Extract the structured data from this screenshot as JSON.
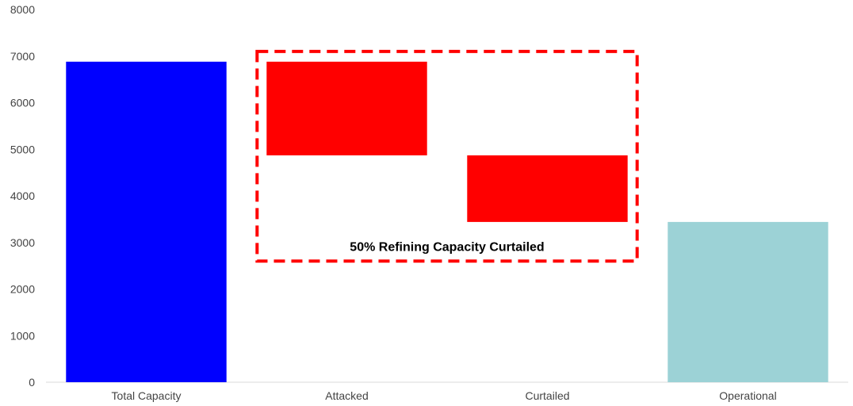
{
  "chart_data": {
    "type": "bar",
    "subtype": "waterfall",
    "categories": [
      "Total Capacity",
      "Attacked",
      "Curtailed",
      "Operational"
    ],
    "bars": [
      {
        "category": "Total Capacity",
        "base": 0,
        "top": 6880,
        "color": "#0000ff"
      },
      {
        "category": "Attacked",
        "base": 4870,
        "top": 6880,
        "color": "#ff0000"
      },
      {
        "category": "Curtailed",
        "base": 3440,
        "top": 4870,
        "color": "#ff0000"
      },
      {
        "category": "Operational",
        "base": 0,
        "top": 3440,
        "color": "#9cd2d6"
      }
    ],
    "ylim": [
      0,
      8000
    ],
    "yticks": [
      "0",
      "1000",
      "2000",
      "3000",
      "4000",
      "5000",
      "6000",
      "7000",
      "8000"
    ],
    "title": "",
    "xlabel": "",
    "ylabel": "",
    "grid": false,
    "annotation": {
      "text": "50% Refining Capacity Curtailed",
      "box": {
        "from": "Attacked",
        "to": "Curtailed",
        "ymin": 2600,
        "ymax": 7100
      },
      "color": "#ff0000"
    }
  }
}
